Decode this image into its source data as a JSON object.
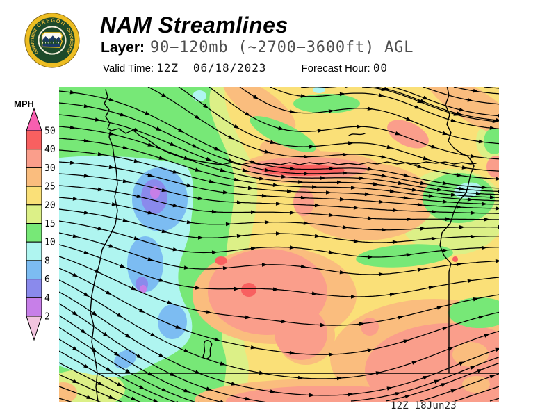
{
  "header": {
    "title": "NAM Streamlines",
    "layer_label": "Layer:",
    "layer_value": "90−120mb (~2700−3600ft) AGL",
    "valid_time_label": "Valid Time:",
    "valid_time_value": "12Z  06/18/2023",
    "forecast_hour_label": "Forecast Hour:",
    "forecast_hour_value": "00"
  },
  "logo": {
    "top_text": "OREGON",
    "left_text": "DEPARTMENT",
    "right_text": "OF FORESTRY"
  },
  "legend": {
    "unit_label": "MPH",
    "tick_labels": [
      "50",
      "40",
      "30",
      "25",
      "20",
      "15",
      "10",
      "8",
      "6",
      "4",
      "2"
    ],
    "cell_colors": [
      "#f86060",
      "#fa9e8b",
      "#fabd7e",
      "#fae078",
      "#dcf087",
      "#77e877",
      "#aff5f0",
      "#7cbcf2",
      "#8a8aec",
      "#c77fe8"
    ],
    "arrow_top_color": "#f85fb0",
    "arrow_bottom_color": "#f2c4df"
  },
  "map": {
    "timestamp": "12Z 18Jun23",
    "palette": {
      "green": "#77e877",
      "yellow_green": "#dcf087",
      "yellow": "#fae078",
      "orange": "#fabd7e",
      "salmon": "#fa9e8b",
      "red": "#f86060",
      "cyan": "#aff5f0",
      "blue": "#7cbcf2",
      "periwinkle": "#8a8aec",
      "purple": "#c77fe8"
    }
  }
}
